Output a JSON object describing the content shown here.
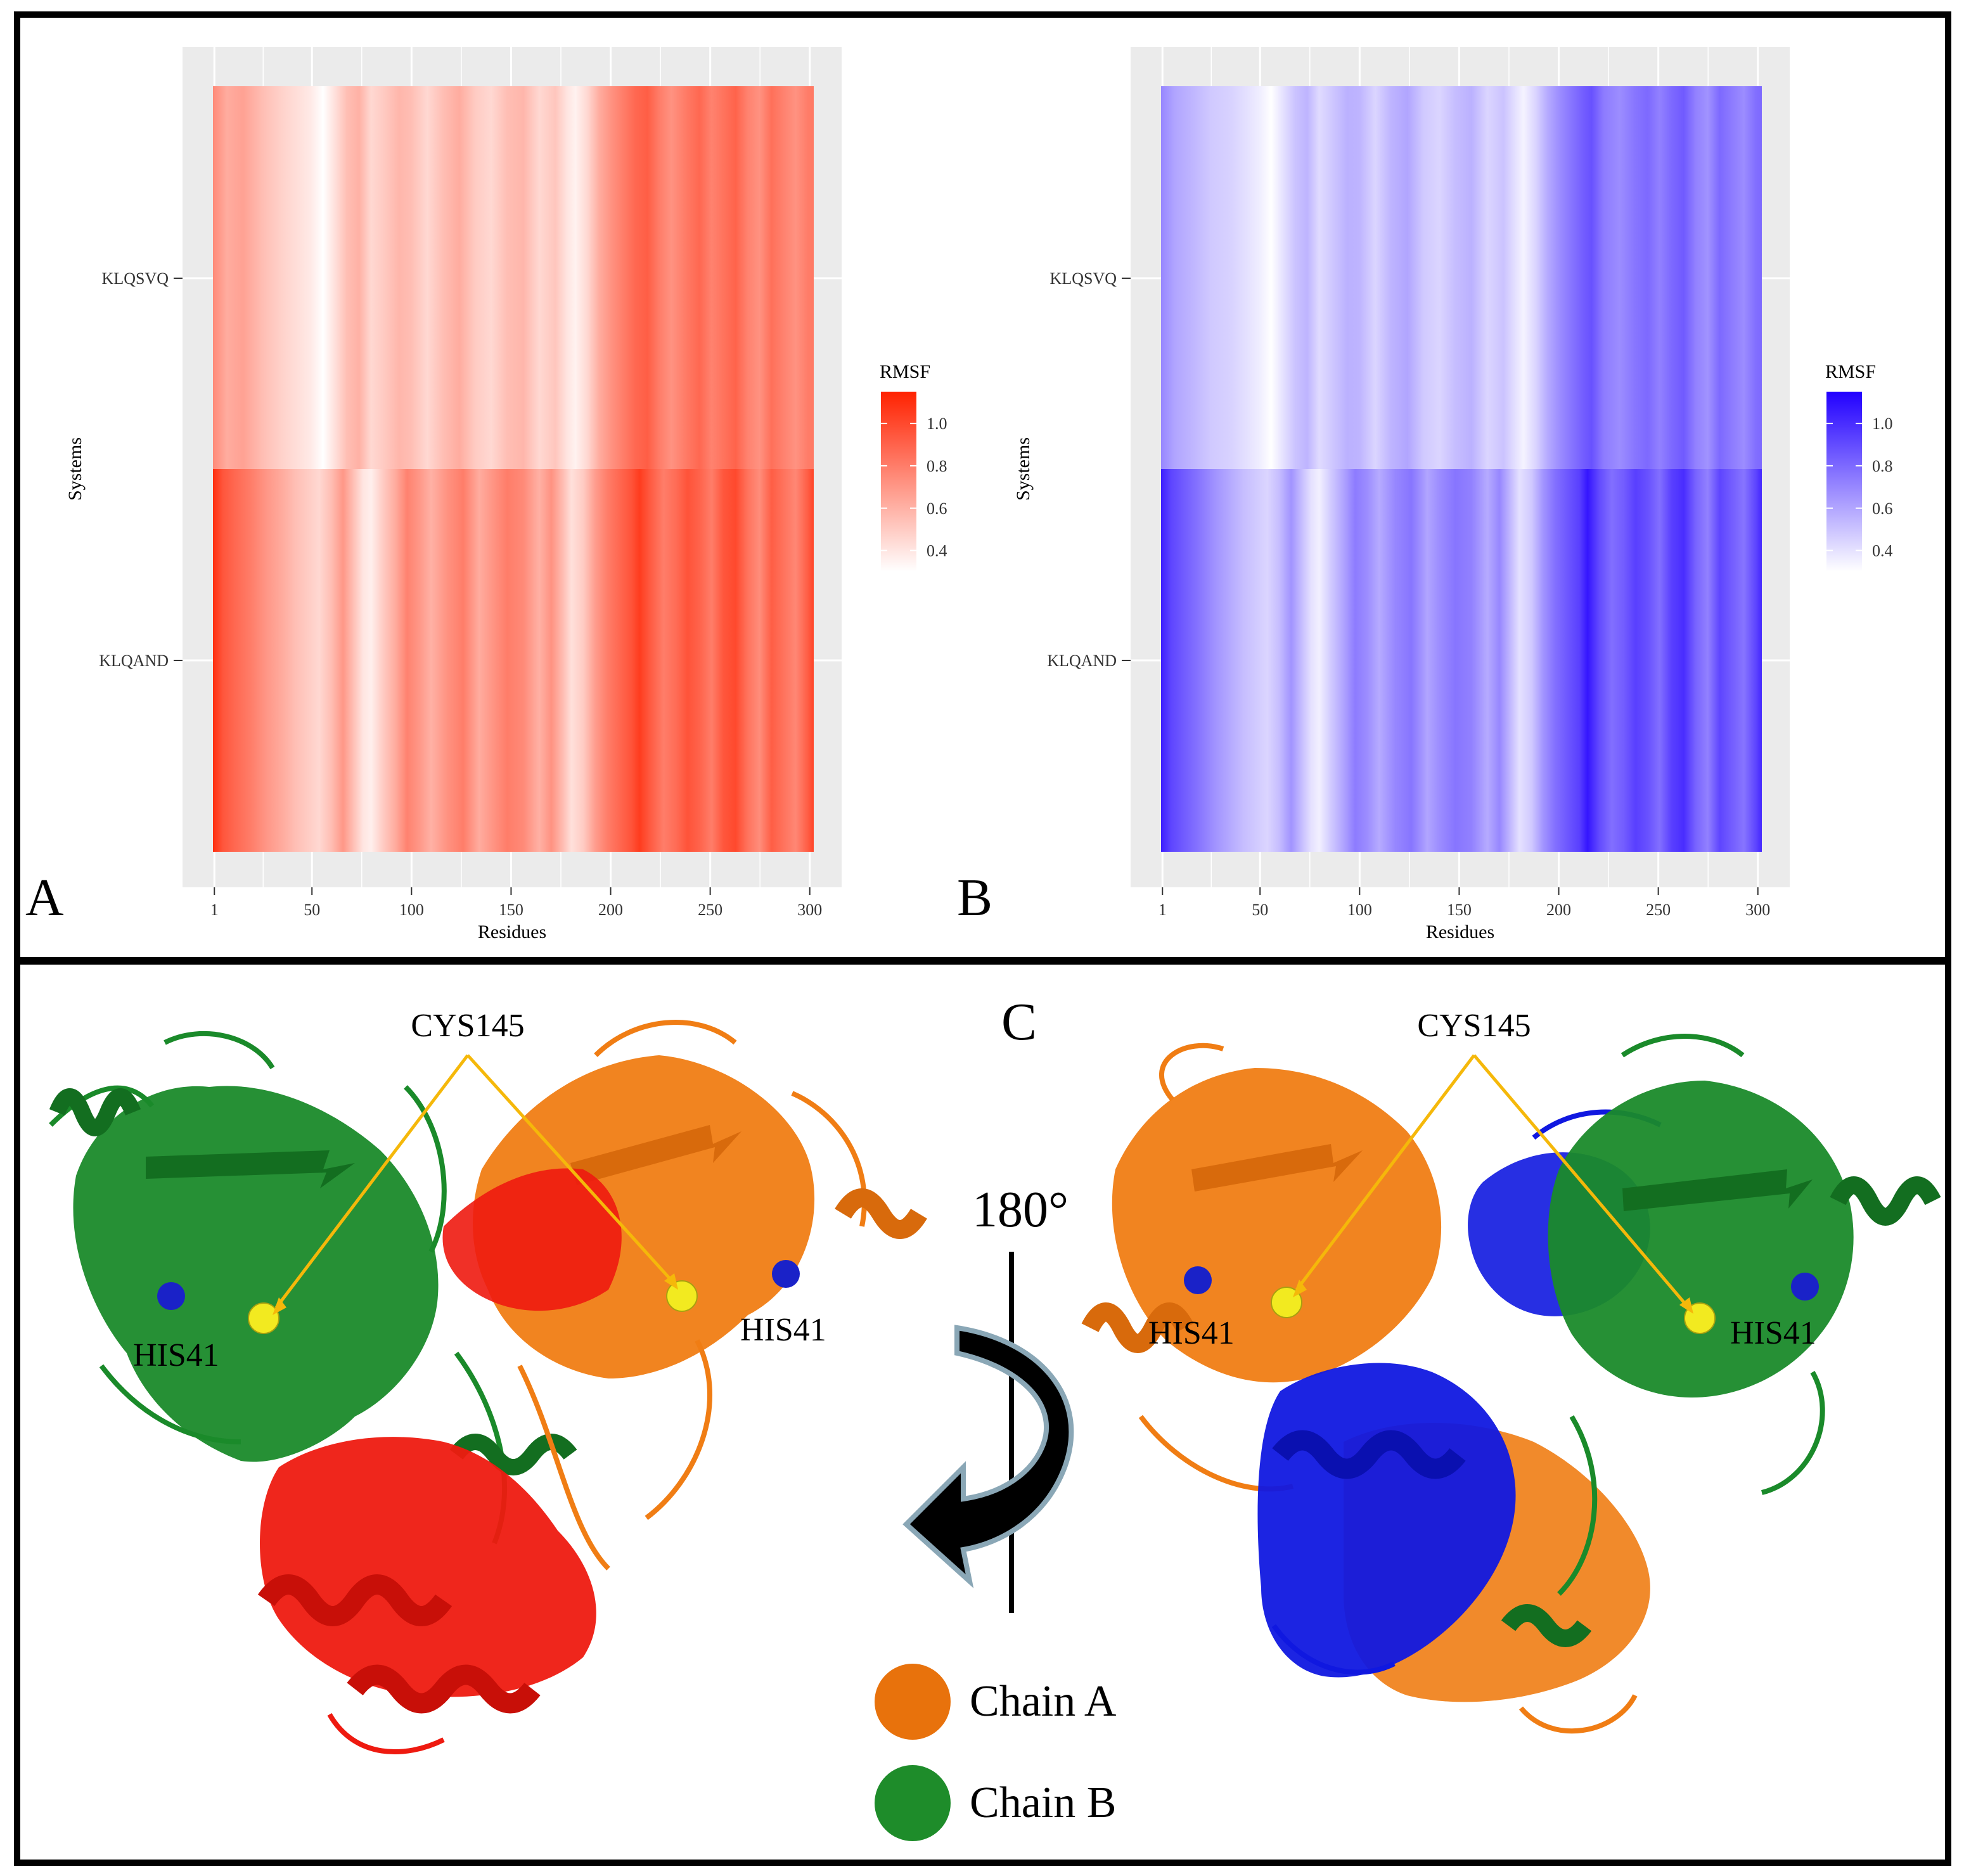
{
  "panel_labels": {
    "a": "A",
    "b": "B",
    "c": "C"
  },
  "chart_data": [
    {
      "type": "heatmap",
      "panel": "A",
      "title": "",
      "xlabel": "Residues",
      "ylabel": "Systems",
      "x_ticks": [
        "1",
        "50",
        "100",
        "150",
        "200",
        "250",
        "300"
      ],
      "x_tick_values": [
        1,
        50,
        100,
        150,
        200,
        250,
        300
      ],
      "xlim": [
        -15,
        316
      ],
      "x_cells": [
        1,
        301
      ],
      "y_categories": [
        "KLQSVQ",
        "KLQAND"
      ],
      "legend": {
        "title": "RMSF",
        "ticks": [
          "0.4",
          "0.6",
          "0.8",
          "1.0"
        ],
        "tick_values": [
          0.4,
          0.6,
          0.8,
          1.0
        ],
        "range": [
          0.3,
          1.15
        ],
        "position": "right"
      },
      "color_low": "#ffffff",
      "color_high": "#ff2200",
      "series": [
        {
          "name": "KLQSVQ",
          "profile": [
            [
              1,
              0.75
            ],
            [
              8,
              0.62
            ],
            [
              16,
              0.66
            ],
            [
              26,
              0.55
            ],
            [
              36,
              0.47
            ],
            [
              44,
              0.42
            ],
            [
              50,
              0.38
            ],
            [
              56,
              0.3
            ],
            [
              62,
              0.42
            ],
            [
              68,
              0.55
            ],
            [
              74,
              0.6
            ],
            [
              80,
              0.45
            ],
            [
              86,
              0.5
            ],
            [
              94,
              0.58
            ],
            [
              100,
              0.55
            ],
            [
              108,
              0.45
            ],
            [
              116,
              0.55
            ],
            [
              124,
              0.62
            ],
            [
              132,
              0.5
            ],
            [
              140,
              0.45
            ],
            [
              148,
              0.55
            ],
            [
              156,
              0.58
            ],
            [
              164,
              0.45
            ],
            [
              172,
              0.52
            ],
            [
              178,
              0.4
            ],
            [
              182,
              0.35
            ],
            [
              188,
              0.45
            ],
            [
              194,
              0.62
            ],
            [
              200,
              0.72
            ],
            [
              206,
              0.8
            ],
            [
              212,
              0.88
            ],
            [
              218,
              0.92
            ],
            [
              224,
              0.8
            ],
            [
              230,
              0.72
            ],
            [
              238,
              0.82
            ],
            [
              244,
              0.88
            ],
            [
              250,
              0.78
            ],
            [
              256,
              0.84
            ],
            [
              262,
              0.9
            ],
            [
              268,
              0.78
            ],
            [
              274,
              0.72
            ],
            [
              280,
              0.85
            ],
            [
              286,
              0.78
            ],
            [
              292,
              0.72
            ],
            [
              298,
              0.8
            ],
            [
              301,
              0.82
            ]
          ]
        },
        {
          "name": "KLQAND",
          "profile": [
            [
              1,
              1.1
            ],
            [
              6,
              0.95
            ],
            [
              12,
              0.88
            ],
            [
              20,
              0.8
            ],
            [
              28,
              0.7
            ],
            [
              36,
              0.62
            ],
            [
              42,
              0.55
            ],
            [
              48,
              0.5
            ],
            [
              54,
              0.45
            ],
            [
              60,
              0.55
            ],
            [
              66,
              0.7
            ],
            [
              72,
              0.52
            ],
            [
              76,
              0.4
            ],
            [
              80,
              0.36
            ],
            [
              86,
              0.5
            ],
            [
              92,
              0.62
            ],
            [
              98,
              0.78
            ],
            [
              104,
              0.7
            ],
            [
              110,
              0.6
            ],
            [
              118,
              0.72
            ],
            [
              126,
              0.8
            ],
            [
              134,
              0.62
            ],
            [
              140,
              0.7
            ],
            [
              148,
              0.8
            ],
            [
              156,
              0.75
            ],
            [
              164,
              0.6
            ],
            [
              170,
              0.72
            ],
            [
              176,
              0.55
            ],
            [
              180,
              0.42
            ],
            [
              186,
              0.5
            ],
            [
              192,
              0.68
            ],
            [
              198,
              0.8
            ],
            [
              204,
              0.88
            ],
            [
              210,
              0.96
            ],
            [
              214,
              1.05
            ],
            [
              220,
              0.92
            ],
            [
              226,
              0.8
            ],
            [
              232,
              0.86
            ],
            [
              238,
              0.96
            ],
            [
              244,
              0.9
            ],
            [
              250,
              0.8
            ],
            [
              256,
              0.95
            ],
            [
              262,
              1.0
            ],
            [
              268,
              0.84
            ],
            [
              274,
              0.74
            ],
            [
              280,
              0.92
            ],
            [
              286,
              0.84
            ],
            [
              292,
              0.76
            ],
            [
              298,
              0.92
            ],
            [
              301,
              1.02
            ]
          ]
        }
      ]
    },
    {
      "type": "heatmap",
      "panel": "B",
      "title": "",
      "xlabel": "Residues",
      "ylabel": "Systems",
      "x_ticks": [
        "1",
        "50",
        "100",
        "150",
        "200",
        "250",
        "300"
      ],
      "x_tick_values": [
        1,
        50,
        100,
        150,
        200,
        250,
        300
      ],
      "xlim": [
        -15,
        316
      ],
      "x_cells": [
        1,
        301
      ],
      "y_categories": [
        "KLQSVQ",
        "KLQAND"
      ],
      "legend": {
        "title": "RMSF",
        "ticks": [
          "0.4",
          "0.6",
          "0.8",
          "1.0"
        ],
        "tick_values": [
          0.4,
          0.6,
          0.8,
          1.0
        ],
        "range": [
          0.3,
          1.15
        ],
        "position": "right"
      },
      "color_low": "#ffffff",
      "color_high": "#2200ff",
      "series": [
        {
          "name": "KLQSVQ",
          "profile": [
            [
              1,
              0.7
            ],
            [
              8,
              0.6
            ],
            [
              16,
              0.55
            ],
            [
              26,
              0.48
            ],
            [
              36,
              0.45
            ],
            [
              44,
              0.4
            ],
            [
              50,
              0.36
            ],
            [
              56,
              0.3
            ],
            [
              62,
              0.4
            ],
            [
              68,
              0.5
            ],
            [
              74,
              0.55
            ],
            [
              80,
              0.42
            ],
            [
              86,
              0.48
            ],
            [
              94,
              0.56
            ],
            [
              100,
              0.55
            ],
            [
              108,
              0.44
            ],
            [
              116,
              0.55
            ],
            [
              124,
              0.6
            ],
            [
              132,
              0.48
            ],
            [
              140,
              0.44
            ],
            [
              148,
              0.52
            ],
            [
              156,
              0.56
            ],
            [
              164,
              0.44
            ],
            [
              172,
              0.5
            ],
            [
              178,
              0.4
            ],
            [
              182,
              0.34
            ],
            [
              188,
              0.44
            ],
            [
              194,
              0.58
            ],
            [
              200,
              0.68
            ],
            [
              206,
              0.76
            ],
            [
              212,
              0.84
            ],
            [
              216,
              0.88
            ],
            [
              222,
              0.74
            ],
            [
              230,
              0.68
            ],
            [
              238,
              0.76
            ],
            [
              244,
              0.8
            ],
            [
              250,
              0.72
            ],
            [
              256,
              0.8
            ],
            [
              262,
              0.85
            ],
            [
              268,
              0.72
            ],
            [
              274,
              0.66
            ],
            [
              280,
              0.8
            ],
            [
              286,
              0.74
            ],
            [
              292,
              0.68
            ],
            [
              298,
              0.78
            ],
            [
              301,
              0.8
            ]
          ]
        },
        {
          "name": "KLQAND",
          "profile": [
            [
              1,
              1.05
            ],
            [
              6,
              0.92
            ],
            [
              12,
              0.85
            ],
            [
              20,
              0.76
            ],
            [
              28,
              0.66
            ],
            [
              36,
              0.58
            ],
            [
              42,
              0.52
            ],
            [
              48,
              0.48
            ],
            [
              54,
              0.44
            ],
            [
              60,
              0.52
            ],
            [
              66,
              0.66
            ],
            [
              72,
              0.5
            ],
            [
              76,
              0.4
            ],
            [
              80,
              0.35
            ],
            [
              86,
              0.48
            ],
            [
              92,
              0.6
            ],
            [
              98,
              0.74
            ],
            [
              104,
              0.68
            ],
            [
              110,
              0.58
            ],
            [
              118,
              0.7
            ],
            [
              126,
              0.76
            ],
            [
              134,
              0.6
            ],
            [
              140,
              0.68
            ],
            [
              148,
              0.76
            ],
            [
              156,
              0.72
            ],
            [
              164,
              0.58
            ],
            [
              170,
              0.7
            ],
            [
              176,
              0.52
            ],
            [
              180,
              0.4
            ],
            [
              186,
              0.48
            ],
            [
              192,
              0.66
            ],
            [
              198,
              0.78
            ],
            [
              204,
              0.86
            ],
            [
              210,
              0.94
            ],
            [
              214,
              1.08
            ],
            [
              220,
              0.9
            ],
            [
              226,
              0.78
            ],
            [
              232,
              0.84
            ],
            [
              238,
              0.94
            ],
            [
              244,
              0.88
            ],
            [
              250,
              0.78
            ],
            [
              256,
              0.94
            ],
            [
              262,
              1.0
            ],
            [
              268,
              0.82
            ],
            [
              274,
              0.72
            ],
            [
              280,
              0.92
            ],
            [
              286,
              0.84
            ],
            [
              292,
              0.76
            ],
            [
              298,
              0.92
            ],
            [
              301,
              1.02
            ]
          ]
        }
      ]
    }
  ],
  "structure": {
    "left_cys_label": "CYS145",
    "right_cys_label": "CYS145",
    "his41_labels": [
      "HIS41",
      "HIS41",
      "HIS41",
      "HIS41"
    ],
    "rotation_label": "180°",
    "legend": [
      {
        "label": "Chain A",
        "color": "#e8720c"
      },
      {
        "label": "Chain B",
        "color": "#1e8c2a"
      }
    ],
    "colors": {
      "orange": "#f07d14",
      "green": "#1a8a2a",
      "red": "#ee1a10",
      "blue": "#1018e0",
      "arrow": "#f5b80a",
      "his": "#1a22c8",
      "cys": "#f2ea20"
    }
  }
}
